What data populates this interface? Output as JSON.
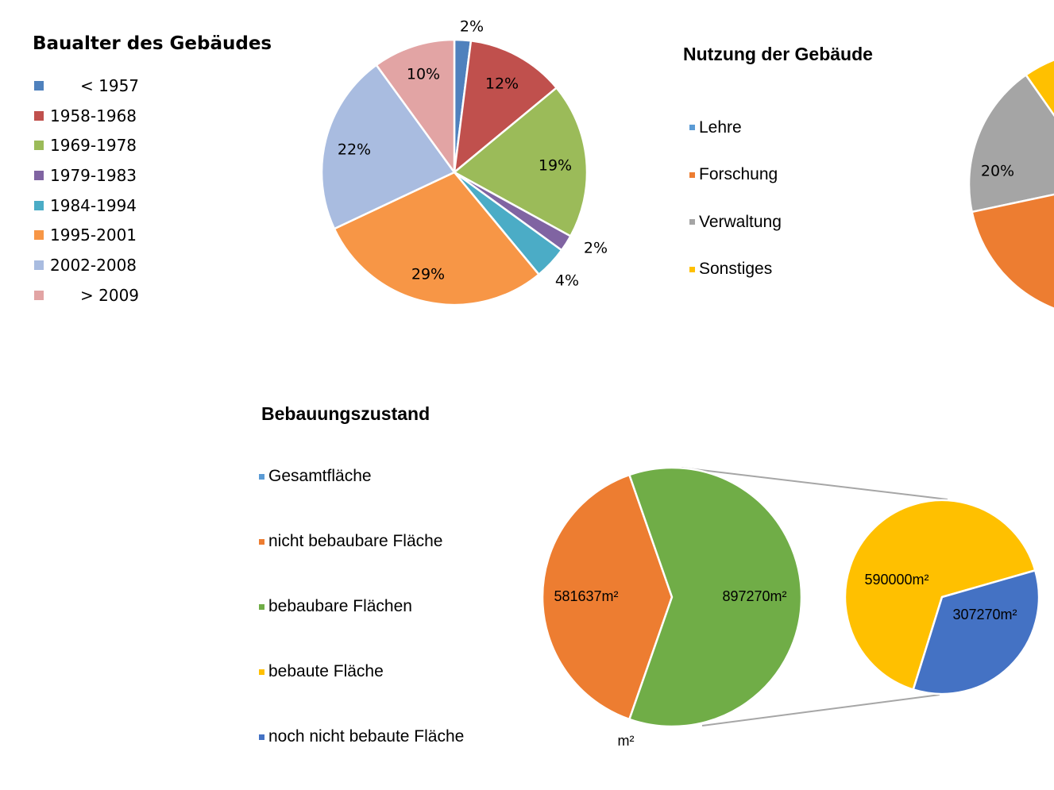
{
  "chart_data": [
    {
      "type": "pie",
      "title": "Baualter des Gebäudes",
      "categories": [
        "< 1957",
        "1958-1968",
        "1969-1978",
        "1979-1983",
        "1984-1994",
        "1995-2001",
        "2002-2008",
        "> 2009"
      ],
      "values": [
        2,
        12,
        19,
        2,
        4,
        29,
        22,
        10
      ],
      "labels": [
        "2%",
        "12%",
        "19%",
        "2%",
        "4%",
        "29%",
        "22%",
        "10%"
      ],
      "colors": [
        "#4f81bd",
        "#c0504d",
        "#9bbb59",
        "#8064a2",
        "#4bacc6",
        "#f79646",
        "#a9bce0",
        "#e2a4a4"
      ],
      "legend": "left"
    },
    {
      "type": "pie",
      "title": "Nutzung der Gebäude",
      "categories": [
        "Lehre",
        "Forschung",
        "Verwaltung",
        "Sonstiges"
      ],
      "visible_labels": [
        "20%"
      ],
      "colors": [
        "#5b9bd5",
        "#ed7d31",
        "#a5a5a5",
        "#ffc000"
      ],
      "legend": "left"
    },
    {
      "type": "pie",
      "title": "Bebauungszustand",
      "categories": [
        "Gesamtfläche",
        "nicht bebaubare Fläche",
        "bebaubare Flächen",
        "bebaute Fläche",
        "noch nicht bebaute Fläche"
      ],
      "colors": [
        "#5b9bd5",
        "#ed7d31",
        "#70ad47",
        "#ffc000",
        "#4472c4"
      ],
      "main_pie": [
        {
          "category": "nicht bebaubare Fläche",
          "value": 581637,
          "label": "581637m²"
        },
        {
          "category": "bebaubare Flächen",
          "value": 897270,
          "label": "897270m²"
        }
      ],
      "secondary_pie": [
        {
          "category": "bebaute Fläche",
          "value": 590000,
          "label": "590000m²"
        },
        {
          "category": "noch nicht bebaute Fläche",
          "value": 307270,
          "label": "307270m²"
        }
      ],
      "unit_label": "m²",
      "legend": "left"
    }
  ]
}
